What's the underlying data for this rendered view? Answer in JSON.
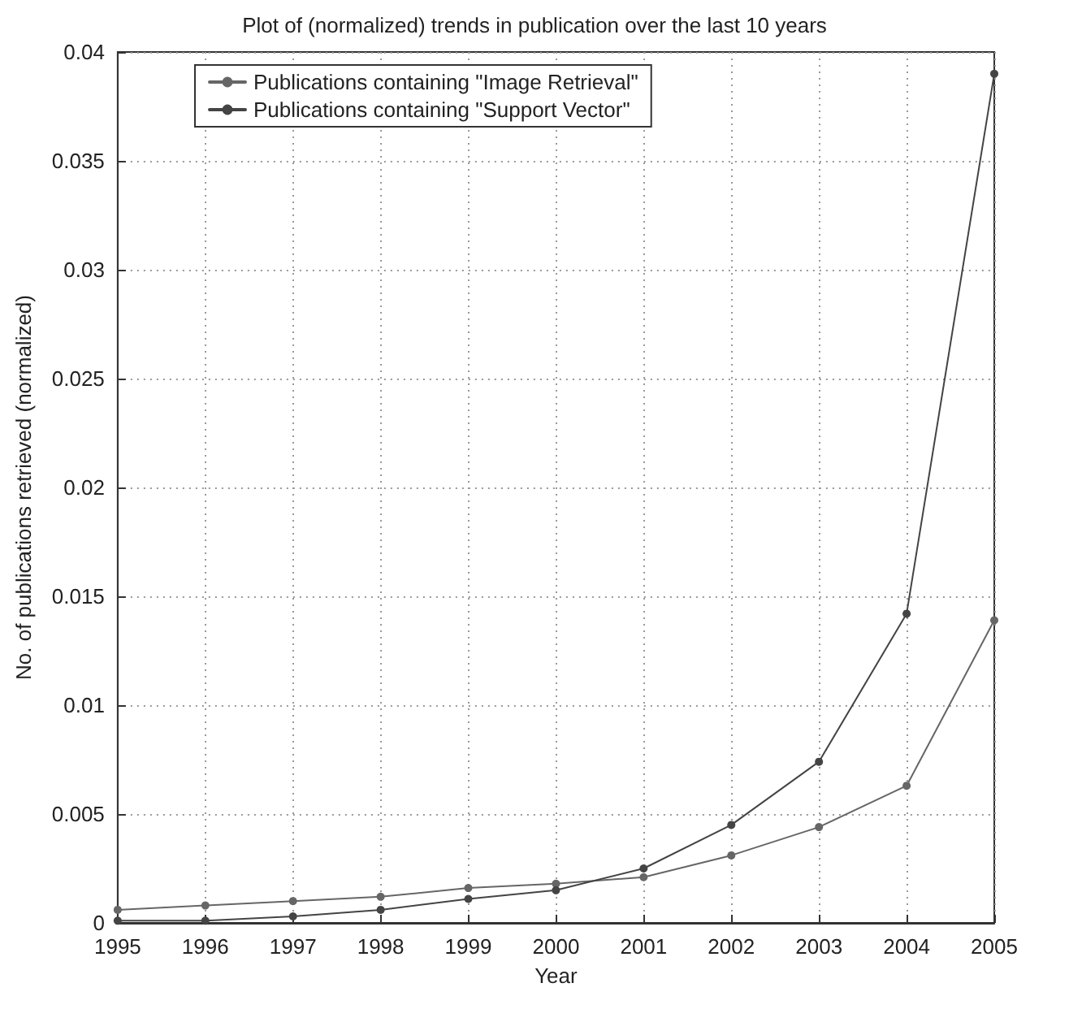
{
  "chart_data": {
    "type": "line",
    "title": "Plot of (normalized) trends in publication over the last 10 years",
    "xlabel": "Year",
    "ylabel": "No. of publications retrieved (normalized)",
    "x": [
      1995,
      1996,
      1997,
      1998,
      1999,
      2000,
      2001,
      2002,
      2003,
      2004,
      2005
    ],
    "series": [
      {
        "name": "Publications containing \"Image Retrieval\"",
        "color": "#666666",
        "values": [
          0.0006,
          0.0008,
          0.001,
          0.0012,
          0.0016,
          0.0018,
          0.0021,
          0.0031,
          0.0044,
          0.0063,
          0.0139
        ]
      },
      {
        "name": "Publications containing \"Support Vector\"",
        "color": "#444444",
        "values": [
          0.0001,
          0.0001,
          0.0003,
          0.0006,
          0.0011,
          0.0015,
          0.0025,
          0.0045,
          0.0074,
          0.0142,
          0.039
        ]
      }
    ],
    "xlim": [
      1995,
      2005
    ],
    "xticks": [
      1995,
      1996,
      1997,
      1998,
      1999,
      2000,
      2001,
      2002,
      2003,
      2004,
      2005
    ],
    "ylim": [
      0,
      0.04
    ],
    "yticks": [
      0,
      0.005,
      0.01,
      0.015,
      0.02,
      0.025,
      0.03,
      0.035,
      0.04
    ],
    "grid": true,
    "legend": "top left",
    "marker": "circle",
    "line_style": "solid"
  }
}
